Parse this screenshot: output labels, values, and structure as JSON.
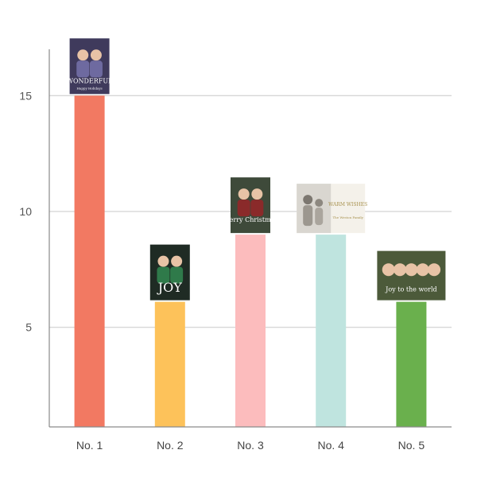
{
  "chart_data": {
    "type": "bar",
    "categories": [
      "No. 1",
      "No. 2",
      "No. 3",
      "No. 4",
      "No. 5"
    ],
    "values": [
      15,
      6.1,
      9,
      9,
      6.1
    ],
    "colors": [
      "#f27962",
      "#fdc25a",
      "#fcbcbd",
      "#bfe4df",
      "#6ab04d"
    ],
    "yticks": [
      5,
      10,
      15
    ],
    "ylim": [
      0.7,
      17
    ],
    "grid": true,
    "legend": "none",
    "title": "",
    "xlabel": "",
    "ylabel": ""
  },
  "cards": [
    {
      "icon": "family-photo-card-icon",
      "text": "WONDERFUL",
      "subtext": "Happy Holidays"
    },
    {
      "icon": "couple-photo-card-icon",
      "text": "JOY",
      "subtext": ""
    },
    {
      "icon": "kids-photo-card-icon",
      "text": "Merry Christmas",
      "subtext": ""
    },
    {
      "icon": "warm-wishes-card-icon",
      "text": "WARM WISHES",
      "subtext": "The Weston Family"
    },
    {
      "icon": "group-photo-card-icon",
      "text": "Joy to the world",
      "subtext": ""
    }
  ]
}
